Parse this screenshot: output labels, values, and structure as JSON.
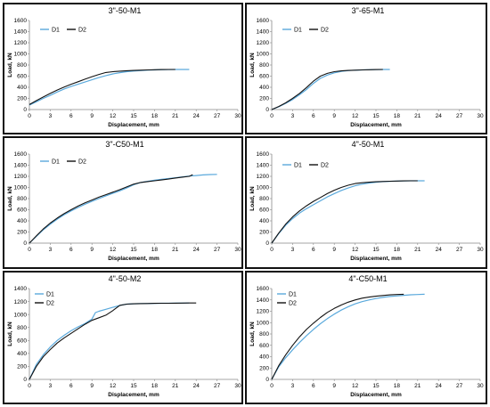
{
  "colors": {
    "D1": "#5aa9dc",
    "D2": "#111111"
  },
  "chart_data": [
    {
      "type": "line",
      "title": "3\"-50-M1",
      "xlabel": "Displacement, mm",
      "ylabel": "Load, kN",
      "xlim": [
        0,
        30
      ],
      "ylim": [
        0,
        1600
      ],
      "xticks": [
        "0",
        "3",
        "6",
        "9",
        "12",
        "15",
        "18",
        "21",
        "24",
        "27",
        "30"
      ],
      "yticks": [
        "0",
        "200",
        "400",
        "600",
        "800",
        "1000",
        "1200",
        "1400",
        "1600"
      ],
      "legend": "top-left",
      "series": [
        {
          "name": "D1",
          "x": [
            0,
            1,
            2,
            3,
            4,
            5,
            6,
            7,
            8,
            9,
            10,
            11,
            12,
            13,
            14,
            15,
            16,
            17,
            18,
            19,
            20,
            21,
            22,
            23
          ],
          "y": [
            80,
            140,
            200,
            255,
            315,
            370,
            415,
            455,
            495,
            535,
            575,
            610,
            640,
            662,
            680,
            692,
            700,
            708,
            712,
            716,
            719,
            720,
            720,
            720
          ]
        },
        {
          "name": "D2",
          "x": [
            0,
            1,
            2,
            3,
            4,
            5,
            6,
            7,
            8,
            9,
            10,
            11,
            12,
            13,
            14,
            15,
            16,
            17,
            18,
            19,
            20,
            21
          ],
          "y": [
            90,
            160,
            225,
            290,
            350,
            405,
            455,
            500,
            545,
            590,
            630,
            665,
            680,
            690,
            697,
            703,
            708,
            712,
            716,
            719,
            720,
            720
          ]
        }
      ]
    },
    {
      "type": "line",
      "title": "3\"-65-M1",
      "xlabel": "Displacement, mm",
      "ylabel": "Load, kN",
      "xlim": [
        0,
        30
      ],
      "ylim": [
        0,
        1600
      ],
      "xticks": [
        "0",
        "3",
        "6",
        "9",
        "12",
        "15",
        "18",
        "21",
        "24",
        "27",
        "30"
      ],
      "yticks": [
        "0",
        "200",
        "400",
        "600",
        "800",
        "1000",
        "1200",
        "1400",
        "1600"
      ],
      "legend": "top-left",
      "series": [
        {
          "name": "D1",
          "x": [
            0,
            1,
            2,
            3,
            4,
            5,
            6,
            7,
            8,
            9,
            10,
            11,
            12,
            13,
            14,
            15,
            16,
            17
          ],
          "y": [
            0,
            50,
            110,
            180,
            265,
            360,
            470,
            560,
            620,
            660,
            685,
            700,
            708,
            712,
            715,
            718,
            720,
            720
          ]
        },
        {
          "name": "D2",
          "x": [
            0,
            1,
            2,
            3,
            4,
            5,
            6,
            7,
            8,
            9,
            10,
            11,
            12,
            13,
            14,
            15,
            16
          ],
          "y": [
            0,
            55,
            120,
            200,
            290,
            395,
            510,
            600,
            650,
            680,
            695,
            703,
            708,
            712,
            715,
            718,
            720
          ]
        }
      ]
    },
    {
      "type": "line",
      "title": "3\"-C50-M1",
      "xlabel": "Displacement, mm",
      "ylabel": "Load, kN",
      "xlim": [
        0,
        30
      ],
      "ylim": [
        0,
        1600
      ],
      "xticks": [
        "0",
        "3",
        "6",
        "9",
        "12",
        "15",
        "18",
        "21",
        "24",
        "27",
        "30"
      ],
      "yticks": [
        "0",
        "200",
        "400",
        "600",
        "800",
        "1000",
        "1200",
        "1400",
        "1600"
      ],
      "legend": "top-left",
      "series": [
        {
          "name": "D1",
          "x": [
            0,
            1,
            2,
            3,
            4,
            5,
            6,
            7,
            8,
            9,
            10,
            11,
            12,
            13,
            14,
            15,
            16,
            17,
            18,
            19,
            20,
            21,
            22,
            23,
            24,
            25,
            26,
            27
          ],
          "y": [
            0,
            120,
            240,
            340,
            430,
            510,
            580,
            640,
            700,
            750,
            800,
            850,
            895,
            940,
            990,
            1050,
            1090,
            1110,
            1130,
            1145,
            1160,
            1175,
            1190,
            1205,
            1215,
            1225,
            1232,
            1235
          ]
        },
        {
          "name": "D2",
          "x": [
            0,
            1,
            2,
            3,
            4,
            5,
            6,
            7,
            8,
            9,
            10,
            11,
            12,
            13,
            14,
            15,
            16,
            17,
            18,
            19,
            20,
            21,
            22,
            23,
            23.5
          ],
          "y": [
            0,
            130,
            255,
            360,
            450,
            530,
            600,
            665,
            725,
            775,
            825,
            870,
            915,
            960,
            1010,
            1060,
            1090,
            1105,
            1120,
            1135,
            1150,
            1170,
            1185,
            1200,
            1230
          ]
        }
      ]
    },
    {
      "type": "line",
      "title": "4\"-50-M1",
      "xlabel": "Displacement, mm",
      "ylabel": "Load, kN",
      "xlim": [
        0,
        30
      ],
      "ylim": [
        0,
        1600
      ],
      "xticks": [
        "0",
        "3",
        "6",
        "9",
        "12",
        "15",
        "18",
        "21",
        "24",
        "27",
        "30"
      ],
      "yticks": [
        "0",
        "200",
        "400",
        "600",
        "800",
        "1000",
        "1200",
        "1400",
        "1600"
      ],
      "legend": "top-left",
      "series": [
        {
          "name": "D1",
          "x": [
            0,
            1,
            2,
            3,
            4,
            5,
            6,
            7,
            8,
            9,
            10,
            11,
            12,
            13,
            14,
            15,
            16,
            17,
            18,
            19,
            20,
            21,
            22
          ],
          "y": [
            0,
            170,
            320,
            440,
            540,
            620,
            690,
            760,
            830,
            890,
            945,
            990,
            1030,
            1060,
            1080,
            1095,
            1105,
            1110,
            1115,
            1118,
            1120,
            1120,
            1120
          ]
        },
        {
          "name": "D2",
          "x": [
            0,
            1,
            2,
            3,
            4,
            5,
            6,
            7,
            8,
            9,
            10,
            11,
            12,
            13,
            14,
            15,
            16,
            17,
            18,
            19,
            20,
            21
          ],
          "y": [
            0,
            180,
            340,
            470,
            580,
            670,
            750,
            820,
            890,
            950,
            1000,
            1040,
            1070,
            1085,
            1095,
            1102,
            1108,
            1112,
            1115,
            1118,
            1120,
            1120
          ]
        }
      ]
    },
    {
      "type": "line",
      "title": "4\"-50-M2",
      "xlabel": "Displacement, mm",
      "ylabel": "Load, kN",
      "xlim": [
        0,
        30
      ],
      "ylim": [
        0,
        1400
      ],
      "xticks": [
        "0",
        "3",
        "6",
        "9",
        "12",
        "15",
        "18",
        "21",
        "24",
        "27",
        "30"
      ],
      "yticks": [
        "0",
        "200",
        "400",
        "600",
        "800",
        "1000",
        "1200",
        "1400"
      ],
      "legend": "top-left",
      "series": [
        {
          "name": "D1",
          "x": [
            0,
            1,
            2,
            3,
            4,
            5,
            6,
            7,
            8,
            9,
            9.5,
            10,
            11,
            12,
            13,
            14,
            15,
            16,
            17,
            18,
            19,
            20,
            21,
            22,
            23
          ],
          "y": [
            0,
            230,
            380,
            500,
            600,
            680,
            750,
            810,
            860,
            930,
            1030,
            1050,
            1080,
            1110,
            1140,
            1160,
            1165,
            1168,
            1170,
            1172,
            1173,
            1174,
            1175,
            1176,
            1178
          ]
        },
        {
          "name": "D2",
          "x": [
            0,
            1,
            2,
            3,
            4,
            5,
            6,
            7,
            8,
            9,
            10,
            11,
            12,
            13,
            14,
            15,
            16,
            17,
            18,
            19,
            20,
            21,
            22,
            23,
            24
          ],
          "y": [
            0,
            200,
            350,
            460,
            560,
            640,
            710,
            780,
            850,
            910,
            950,
            990,
            1060,
            1140,
            1160,
            1165,
            1168,
            1170,
            1172,
            1173,
            1174,
            1175,
            1176,
            1177,
            1178
          ]
        }
      ]
    },
    {
      "type": "line",
      "title": "4\"-C50-M1",
      "xlabel": "Displacement, mm",
      "ylabel": "Load, kN",
      "xlim": [
        0,
        30
      ],
      "ylim": [
        0,
        1600
      ],
      "xticks": [
        "0",
        "3",
        "6",
        "9",
        "12",
        "15",
        "18",
        "21",
        "24",
        "27",
        "30"
      ],
      "yticks": [
        "0",
        "200",
        "400",
        "600",
        "800",
        "1000",
        "1200",
        "1400",
        "1600"
      ],
      "legend": "top-left",
      "series": [
        {
          "name": "D1",
          "x": [
            0,
            1,
            2,
            3,
            4,
            5,
            6,
            7,
            8,
            9,
            10,
            11,
            12,
            13,
            14,
            15,
            16,
            17,
            18,
            19,
            20,
            21,
            22
          ],
          "y": [
            0,
            220,
            380,
            520,
            650,
            770,
            880,
            980,
            1070,
            1150,
            1220,
            1280,
            1330,
            1370,
            1400,
            1425,
            1445,
            1460,
            1470,
            1480,
            1490,
            1495,
            1500
          ]
        },
        {
          "name": "D2",
          "x": [
            0,
            1,
            2,
            3,
            4,
            5,
            6,
            7,
            8,
            9,
            10,
            11,
            12,
            13,
            14,
            15,
            16,
            17,
            18,
            19
          ],
          "y": [
            0,
            240,
            430,
            600,
            750,
            880,
            990,
            1090,
            1180,
            1250,
            1310,
            1360,
            1400,
            1430,
            1450,
            1465,
            1478,
            1488,
            1495,
            1500
          ]
        }
      ]
    }
  ]
}
